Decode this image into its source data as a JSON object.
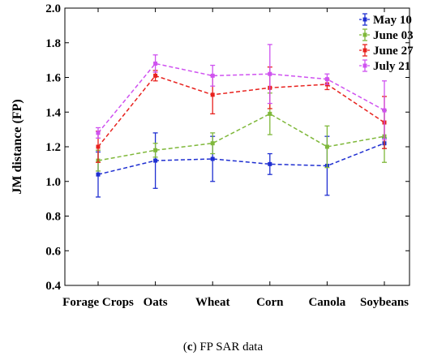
{
  "chart_data": {
    "type": "line",
    "ylabel": "JM distance (FP)",
    "xlabel": "",
    "ylim": [
      0.4,
      2.0
    ],
    "yticks": [
      "0.4",
      "0.6",
      "0.8",
      "1.0",
      "1.2",
      "1.4",
      "1.6",
      "1.8",
      "2.0"
    ],
    "categories": [
      "Forage Crops",
      "Oats",
      "Wheat",
      "Corn",
      "Canola",
      "Soybeans"
    ],
    "legend_position": "top-right",
    "grid": false,
    "series": [
      {
        "name": "May 10",
        "color": "#1f2fd1",
        "values": [
          1.04,
          1.12,
          1.13,
          1.1,
          1.09,
          1.22
        ],
        "errors": [
          0.13,
          0.16,
          0.13,
          0.06,
          0.17,
          0.03
        ]
      },
      {
        "name": "June 03",
        "color": "#7fb83a",
        "values": [
          1.12,
          1.18,
          1.22,
          1.39,
          1.2,
          1.26
        ],
        "errors": [
          0.06,
          0.04,
          0.06,
          0.12,
          0.12,
          0.15
        ]
      },
      {
        "name": "June 27",
        "color": "#e8211d",
        "values": [
          1.2,
          1.61,
          1.5,
          1.54,
          1.56,
          1.34
        ],
        "errors": [
          0.09,
          0.03,
          0.11,
          0.12,
          0.03,
          0.15
        ]
      },
      {
        "name": "July 21",
        "color": "#cf52f0",
        "values": [
          1.28,
          1.68,
          1.61,
          1.62,
          1.59,
          1.41
        ],
        "errors": [
          0.03,
          0.05,
          0.06,
          0.17,
          0.03,
          0.17
        ]
      }
    ]
  },
  "caption": {
    "label": "c",
    "text": "FP SAR data"
  }
}
